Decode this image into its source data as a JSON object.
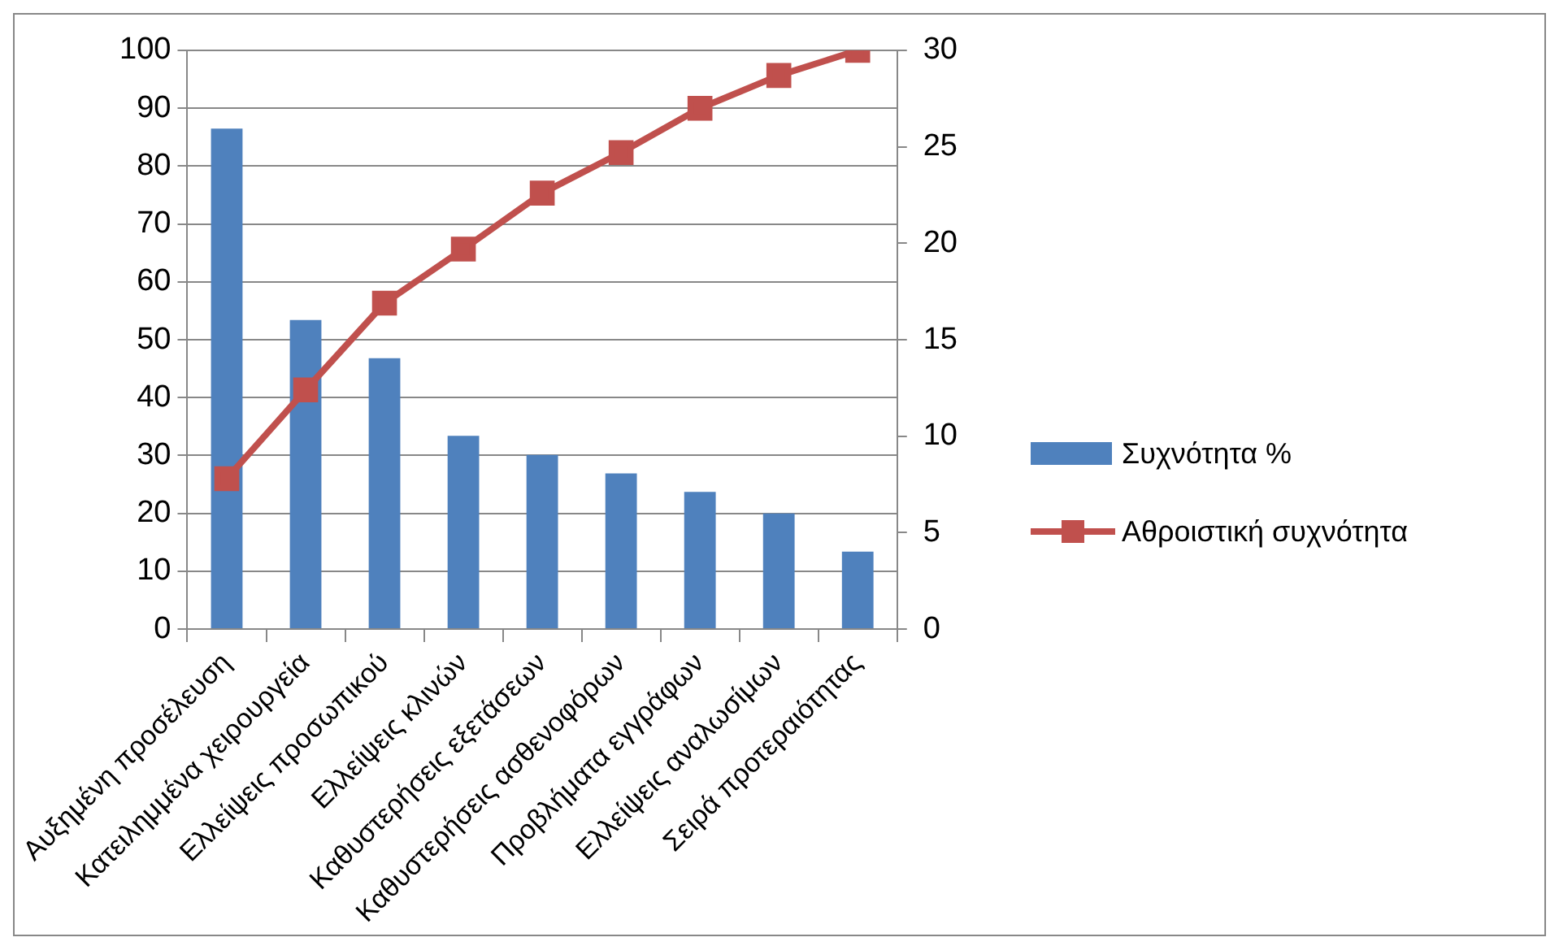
{
  "chart_data": {
    "type": "bar",
    "categories": [
      "Αυξημένη προσέλευση",
      "Κατειλημμένα χειρουργεία",
      "Ελλείψεις προσωπικού",
      "Ελλείψεις κλινών",
      "Καθυστερήσεις εξετάσεων",
      "Καθυστερήσεις ασθενοφόρων",
      "Προβλήματα εγγράφων",
      "Ελλείψεις αναλωσίμων",
      "Σειρά προτεραιότητας"
    ],
    "series": [
      {
        "name": "Συχνότητα %",
        "color": "#4f81bd",
        "values": [
          86.5,
          53.4,
          46.8,
          33.4,
          30.1,
          26.9,
          23.7,
          20,
          13.4
        ]
      },
      {
        "name": "Αθροιστική συχνότητα",
        "type": "line",
        "axis": "y2",
        "color": "#c0504d",
        "values": [
          7.8,
          12.4,
          16.9,
          19.7,
          22.6,
          24.7,
          27,
          28.7,
          30
        ]
      }
    ],
    "ylim": [
      0,
      100
    ],
    "yticks": [
      0,
      10,
      20,
      30,
      40,
      50,
      60,
      70,
      80,
      90,
      100
    ],
    "y2lim": [
      0,
      30
    ],
    "y2ticks": [
      0,
      5,
      10,
      15,
      20,
      25,
      30
    ],
    "grid": "y",
    "legend": "right",
    "marker": "square"
  }
}
